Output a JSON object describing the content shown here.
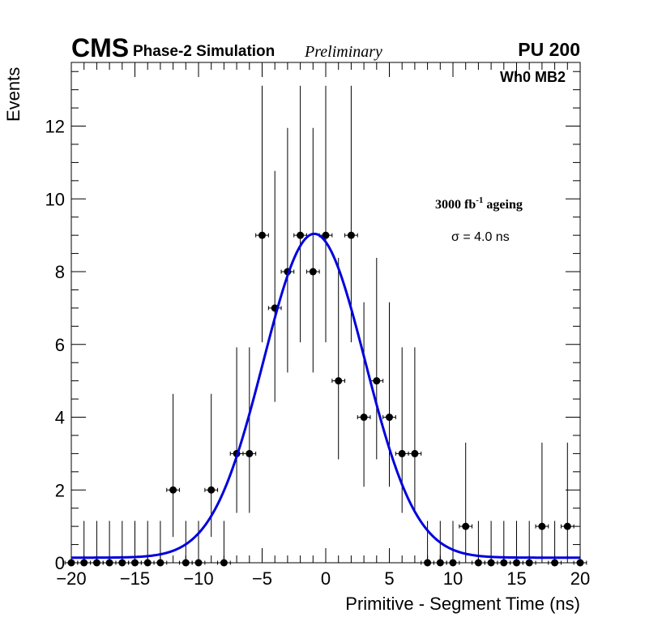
{
  "chart_data": {
    "type": "scatter",
    "title": "",
    "header": {
      "experiment": "CMS",
      "label": "Phase-2 Simulation",
      "status": "Preliminary",
      "pileup": "PU 200",
      "station": "Wh0 MB2"
    },
    "annotations": {
      "ageing_value": "3000 fb",
      "ageing_exponent": "-1",
      "ageing_suffix": " ageing",
      "sigma": "σ = 4.0 ns"
    },
    "xlabel": "Primitive - Segment Time (ns)",
    "ylabel": "Events",
    "xlim": [
      -20,
      20
    ],
    "ylim": [
      0,
      13.75
    ],
    "xticks": [
      -20,
      -15,
      -10,
      -5,
      0,
      5,
      10,
      15,
      20
    ],
    "xtick_labels": [
      "−20",
      "−15",
      "−10",
      "−5",
      "0",
      "5",
      "10",
      "15",
      "20"
    ],
    "yticks": [
      0,
      2,
      4,
      6,
      8,
      10,
      12
    ],
    "ytick_labels": [
      "0",
      "2",
      "4",
      "6",
      "8",
      "10",
      "12"
    ],
    "grid": false,
    "series": [
      {
        "name": "data",
        "x": [
          -20,
          -19,
          -18,
          -17,
          -16,
          -15,
          -14,
          -13,
          -12,
          -11,
          -10,
          -9,
          -8,
          -7,
          -6,
          -5,
          -4,
          -3,
          -2,
          -1,
          0,
          1,
          2,
          3,
          4,
          5,
          6,
          7,
          8,
          9,
          10,
          11,
          12,
          13,
          14,
          15,
          16,
          17,
          18,
          19,
          20
        ],
        "y": [
          0,
          0,
          0,
          0,
          0,
          0,
          0,
          0,
          2,
          0,
          0,
          2,
          0,
          3,
          3,
          9,
          7,
          8,
          9,
          8,
          9,
          5,
          9,
          4,
          5,
          4,
          3,
          3,
          0,
          0,
          0,
          1,
          0,
          0,
          0,
          0,
          0,
          1,
          0,
          1,
          0
        ],
        "x_error": 0.5,
        "y_error_low": [
          0,
          0,
          0,
          0,
          0,
          0,
          0,
          0,
          1.29,
          0,
          0,
          1.29,
          0,
          1.63,
          1.63,
          2.94,
          2.58,
          2.77,
          2.94,
          2.77,
          2.94,
          2.16,
          2.94,
          1.91,
          2.16,
          1.91,
          1.63,
          1.63,
          0,
          0,
          0,
          0.83,
          0,
          0,
          0,
          0,
          0,
          0.83,
          0,
          0.83,
          0
        ],
        "y_error_high": [
          1.15,
          1.15,
          1.15,
          1.15,
          1.15,
          1.15,
          1.15,
          1.15,
          2.64,
          1.15,
          1.15,
          2.64,
          1.15,
          2.92,
          2.92,
          4.11,
          3.77,
          3.95,
          4.11,
          3.95,
          4.11,
          3.38,
          4.11,
          3.16,
          3.38,
          3.16,
          2.92,
          2.92,
          1.15,
          1.15,
          1.15,
          2.3,
          1.15,
          1.15,
          1.15,
          1.15,
          1.15,
          2.3,
          1.15,
          2.3,
          1.15
        ]
      },
      {
        "name": "gaussian fit",
        "type": "line",
        "color": "#0000dd",
        "mean": -0.9,
        "sigma": 4.0,
        "amplitude": 8.9,
        "baseline": 0.14,
        "range": [
          -20,
          20
        ]
      }
    ]
  }
}
